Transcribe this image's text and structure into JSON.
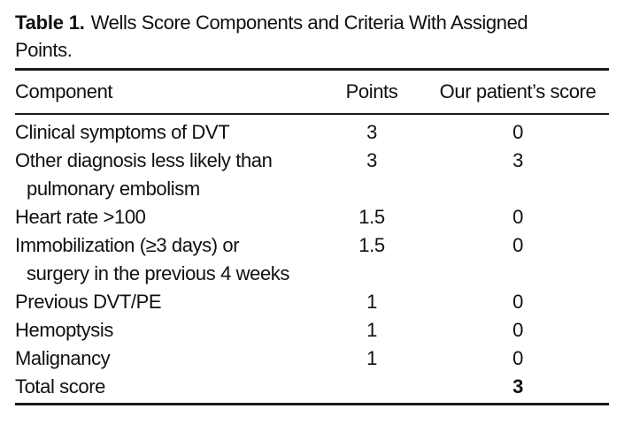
{
  "title": {
    "label": "Table 1.",
    "line1": "Wells Score Components and Criteria With Assigned",
    "line2": "Points."
  },
  "header": {
    "component": "Component",
    "points": "Points",
    "score": "Our patient’s score"
  },
  "rows": [
    {
      "component": "Clinical symptoms of DVT",
      "component2": "",
      "points": "3",
      "score": "0"
    },
    {
      "component": "Other diagnosis less likely than",
      "component2": "pulmonary embolism",
      "points": "3",
      "score": "3"
    },
    {
      "component": "Heart rate >100",
      "component2": "",
      "points": "1.5",
      "score": "0"
    },
    {
      "component": "Immobilization (≥3 days) or",
      "component2": "surgery in the previous 4 weeks",
      "points": "1.5",
      "score": "0"
    },
    {
      "component": "Previous DVT/PE",
      "component2": "",
      "points": "1",
      "score": "0"
    },
    {
      "component": "Hemoptysis",
      "component2": "",
      "points": "1",
      "score": "0"
    },
    {
      "component": "Malignancy",
      "component2": "",
      "points": "1",
      "score": "0"
    },
    {
      "component": "Total score",
      "component2": "",
      "points": "",
      "score": "3"
    }
  ],
  "colors": {
    "background": "#ffffff",
    "text": "#101010",
    "rule": "#1a1a1a"
  }
}
